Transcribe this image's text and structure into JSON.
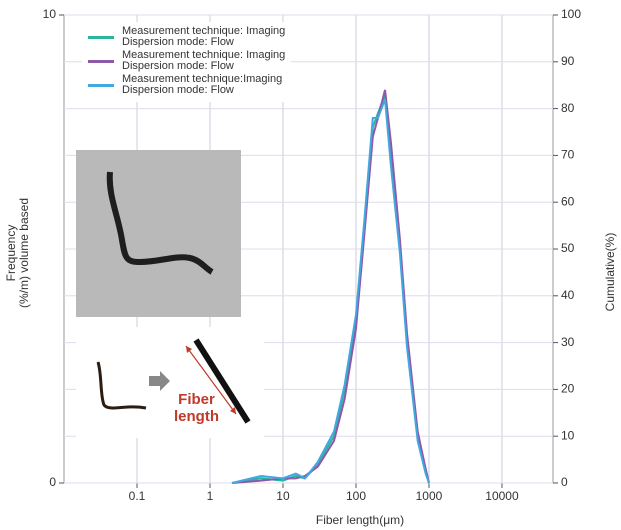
{
  "chart_data": {
    "type": "line",
    "xlabel": "Fiber length(μm)",
    "ylabel": "Frequency\n(%/m) volume based",
    "y2label": "Cumulative(%)",
    "annotation": "Fiber\nlength",
    "x": [
      2,
      5,
      10,
      15,
      20,
      30,
      50,
      70,
      100,
      130,
      170,
      200,
      250,
      300,
      400,
      500,
      700,
      900,
      1000
    ],
    "series": [
      {
        "name": "Measurement technique: Imaging\nDispersion mode: Flow",
        "color": "#2bb59c",
        "values": [
          0,
          0.1,
          0.05,
          0.15,
          0.1,
          0.4,
          1.0,
          2.0,
          3.5,
          5.5,
          7.6,
          7.9,
          8.3,
          7.0,
          5.0,
          3.0,
          1.0,
          0.3,
          0
        ]
      },
      {
        "name": "Measurement technique: Imaging\nDispersion mode: Flow",
        "color": "#8e5aa8",
        "values": [
          0,
          0.05,
          0.1,
          0.1,
          0.15,
          0.35,
          0.9,
          1.8,
          3.3,
          5.3,
          7.4,
          7.8,
          8.4,
          7.3,
          5.2,
          3.2,
          1.1,
          0.3,
          0
        ]
      },
      {
        "name": "Measurement technique:Imaging\nDispersion mode: Flow",
        "color": "#3fa9e0",
        "values": [
          0,
          0.15,
          0.1,
          0.2,
          0.1,
          0.45,
          1.1,
          2.1,
          3.6,
          5.6,
          7.8,
          7.8,
          8.2,
          6.8,
          4.9,
          2.9,
          0.9,
          0.2,
          0
        ]
      }
    ],
    "log_x": true,
    "xlim": [
      0.01,
      50000
    ],
    "xticks": [
      0.1,
      1,
      10,
      100,
      1000,
      10000
    ],
    "ylim": [
      0,
      10
    ],
    "yticks": [
      0,
      10
    ],
    "y2lim": [
      0,
      100
    ],
    "y2ticks": [
      0,
      10,
      20,
      30,
      40,
      50,
      60,
      70,
      80,
      90,
      100
    ],
    "grid": true
  }
}
